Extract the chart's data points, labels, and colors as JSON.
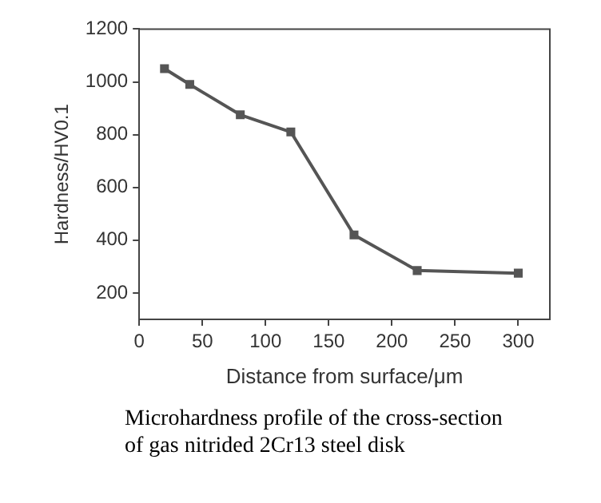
{
  "chart_data": {
    "type": "line",
    "xlabel": "Distance from surface/μm",
    "ylabel": "Hardness/HV0.1",
    "x": [
      20,
      40,
      80,
      120,
      170,
      220,
      300
    ],
    "series": [
      {
        "color": "#555555",
        "values": [
          1050,
          990,
          875,
          810,
          420,
          285,
          275
        ]
      }
    ],
    "xlim": [
      0,
      325
    ],
    "xticks": [
      0,
      50,
      100,
      150,
      200,
      250,
      300
    ],
    "ylim": [
      100,
      1200
    ],
    "yticks": [
      200,
      400,
      600,
      800,
      1000,
      1200
    ],
    "marker": "square",
    "line_style": "solid",
    "grid": false,
    "legend": false,
    "annotations": [
      "Microhardness profile of the cross-section of gas nitrided 2Cr13 steel disk"
    ]
  }
}
